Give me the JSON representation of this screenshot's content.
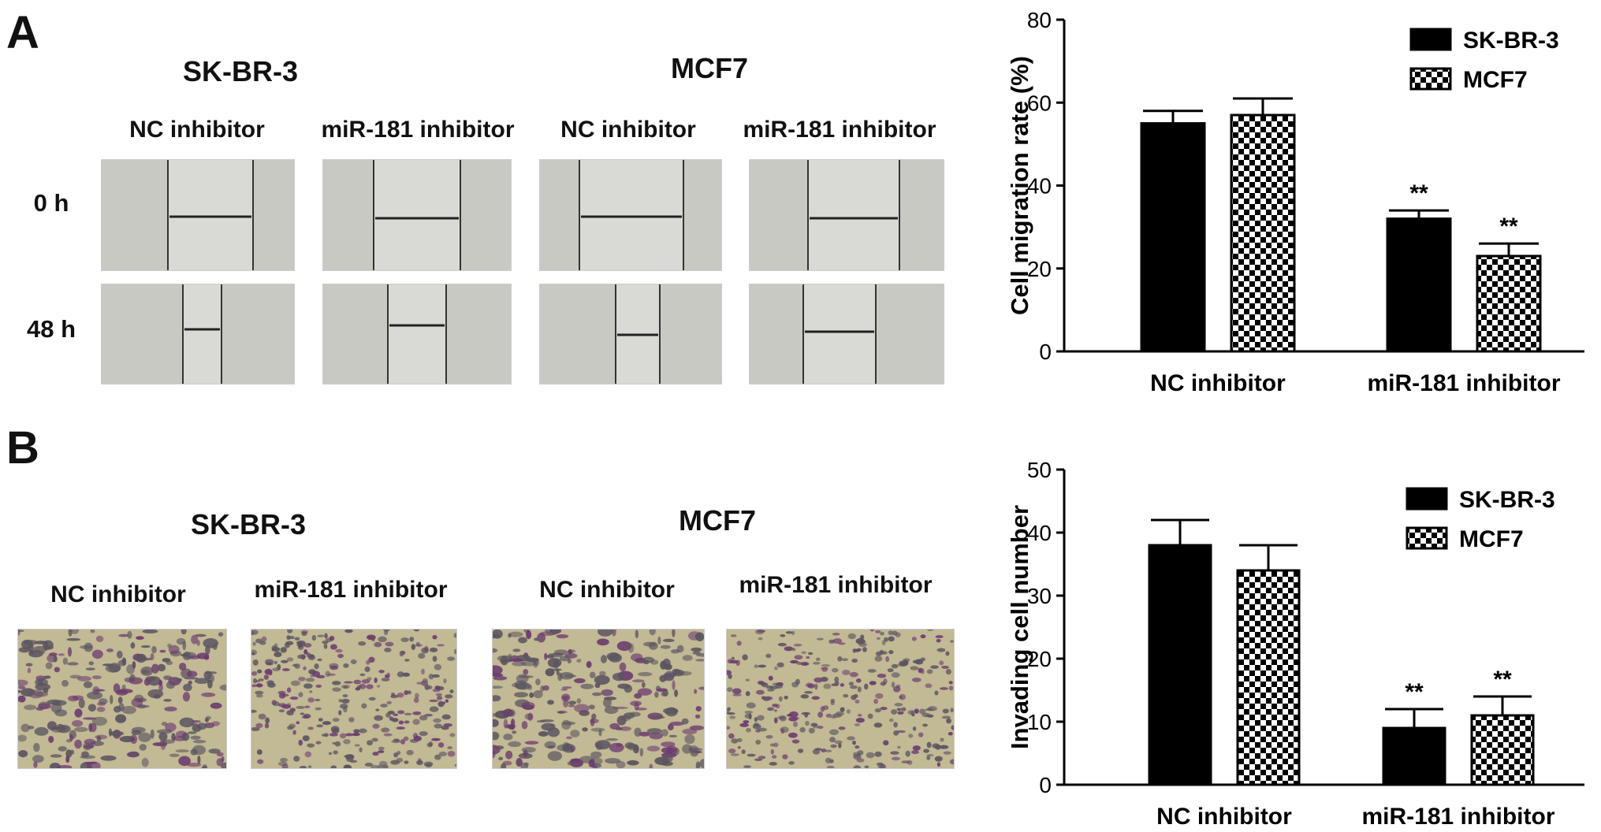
{
  "panels": {
    "A": {
      "letter": "A",
      "cell_lines": [
        "SK-BR-3",
        "MCF7"
      ],
      "conditions": [
        "NC inhibitor",
        "miR-181 inhibitor",
        "NC inhibitor",
        "miR-181 inhibitor"
      ],
      "timepoints": [
        "0 h",
        "48 h"
      ]
    },
    "B": {
      "letter": "B",
      "cell_lines": [
        "SK-BR-3",
        "MCF7"
      ],
      "conditions": [
        "NC inhibitor",
        "miR-181 inhibitor",
        "NC inhibitor",
        "miR-181 inhibitor"
      ]
    }
  },
  "colors": {
    "bar_fill": "#000000",
    "wound_bg": "#d8d8d4",
    "transwell_bg": "#c2b995",
    "stain": "#6b3a6e"
  },
  "chart_data": [
    {
      "type": "bar",
      "categories": [
        "NC inhibitor",
        "miR-181 inhibitor"
      ],
      "series": [
        {
          "name": "SK-BR-3",
          "values": [
            55,
            32
          ],
          "errors": [
            3,
            2
          ],
          "pattern": "solid"
        },
        {
          "name": "MCF7",
          "values": [
            57,
            23
          ],
          "errors": [
            4,
            3
          ],
          "pattern": "checker"
        }
      ],
      "annotations": [
        {
          "category": 1,
          "series": 0,
          "text": "**"
        },
        {
          "category": 1,
          "series": 1,
          "text": "**"
        }
      ],
      "ylabel": "Cell migration rate (%)",
      "ylim": [
        0,
        80
      ],
      "yticks": [
        0,
        20,
        40,
        60,
        80
      ],
      "legend": "top-right"
    },
    {
      "type": "bar",
      "categories": [
        "NC inhibitor",
        "miR-181 inhibitor"
      ],
      "series": [
        {
          "name": "SK-BR-3",
          "values": [
            38,
            9
          ],
          "errors": [
            4,
            3
          ],
          "pattern": "solid"
        },
        {
          "name": "MCF7",
          "values": [
            34,
            11
          ],
          "errors": [
            4,
            3
          ],
          "pattern": "checker"
        }
      ],
      "annotations": [
        {
          "category": 1,
          "series": 0,
          "text": "**"
        },
        {
          "category": 1,
          "series": 1,
          "text": "**"
        }
      ],
      "ylabel": "Invading cell number",
      "ylim": [
        0,
        50
      ],
      "yticks": [
        0,
        10,
        20,
        30,
        40,
        50
      ],
      "legend": "top-right"
    }
  ]
}
